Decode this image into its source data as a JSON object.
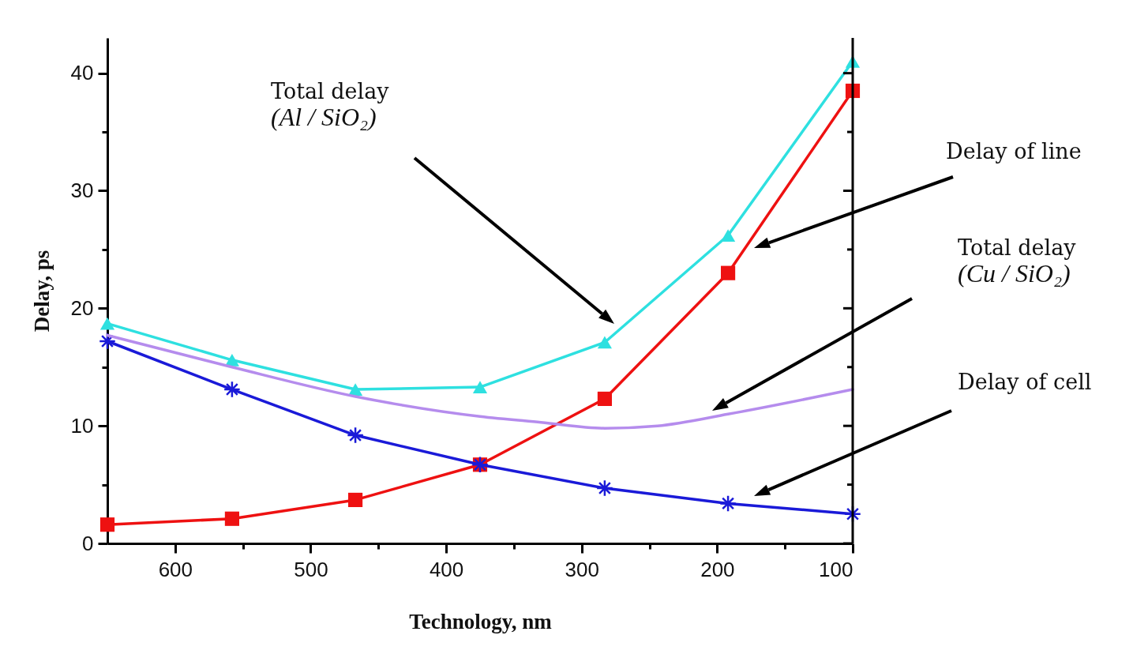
{
  "chart_data": {
    "type": "line",
    "xlabel": "Technology, nm",
    "ylabel": "Delay, ps",
    "x": [
      650,
      558,
      467,
      375,
      283,
      192,
      100
    ],
    "xlim": [
      650,
      100
    ],
    "xticks": [
      600,
      {
        "value": 550,
        "label": null
      },
      500,
      {
        "value": 450,
        "label": null
      },
      400,
      {
        "value": 350,
        "label": null
      },
      300,
      {
        "value": 250,
        "label": null
      },
      200,
      {
        "value": 150,
        "label": null
      },
      100
    ],
    "ylim": [
      0,
      43
    ],
    "yticks": [
      0,
      {
        "value": 5,
        "label": null
      },
      10,
      {
        "value": 15,
        "label": null
      },
      20,
      {
        "value": 25,
        "label": null
      },
      30,
      {
        "value": 35,
        "label": null
      },
      40
    ],
    "grid": false,
    "series": [
      {
        "color": "#2ee0e0",
        "marker": "triangle",
        "values": [
          18.7,
          15.6,
          13.1,
          13.3,
          17.1,
          26.2,
          41
        ]
      },
      {
        "color": "#ee1111",
        "marker": "square",
        "values": [
          1.6,
          2.1,
          3.7,
          6.7,
          12.3,
          23.0,
          38.5
        ]
      },
      {
        "color": "#1a1ad8",
        "marker": "cross",
        "values": [
          17.2,
          13.1,
          9.2,
          6.7,
          4.7,
          3.4,
          2.5
        ]
      },
      {
        "color": "#b58ced",
        "marker": "none",
        "x": [
          650,
          558,
          467,
          375,
          330,
          283,
          244,
          192,
          100
        ],
        "values": [
          17.7,
          15.0,
          12.5,
          10.8,
          10.3,
          9.8,
          10.0,
          11.0,
          13.1
        ]
      }
    ],
    "annotations": [
      "Total delay\n(Al / SiO₂)",
      "Delay of line",
      "Total delay\n(Cu / SiO₂)",
      "Delay of cell"
    ]
  }
}
